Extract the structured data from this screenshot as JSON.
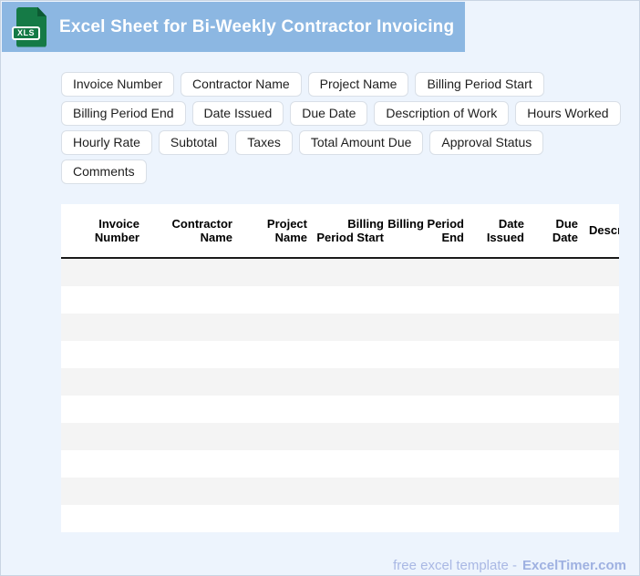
{
  "banner": {
    "title": "Excel Sheet for Bi-Weekly Contractor Invoicing",
    "icon_label": "XLS"
  },
  "chips": [
    "Invoice Number",
    "Contractor Name",
    "Project Name",
    "Billing Period Start",
    "Billing Period End",
    "Date Issued",
    "Due Date",
    "Description of Work",
    "Hours Worked",
    "Hourly Rate",
    "Subtotal",
    "Taxes",
    "Total Amount Due",
    "Approval Status",
    "Comments"
  ],
  "table": {
    "columns": [
      "Invoice Number",
      "Contractor Name",
      "Project Name",
      "Billing Period Start",
      "Billing Period End",
      "Date Issued",
      "Due Date",
      "Description of Work"
    ],
    "row_count": 10
  },
  "footer": {
    "text": "free excel template -",
    "brand": "ExcelTimer.com"
  },
  "colors": {
    "banner_blue": "#8cb7e2",
    "page_background": "#edf4fd",
    "icon_green": "#157a46",
    "icon_fold_green": "#0c5a33",
    "stripe_gray": "#f4f4f4",
    "header_border": "#1a1a1a",
    "footer_text": "#a9b8e4"
  }
}
